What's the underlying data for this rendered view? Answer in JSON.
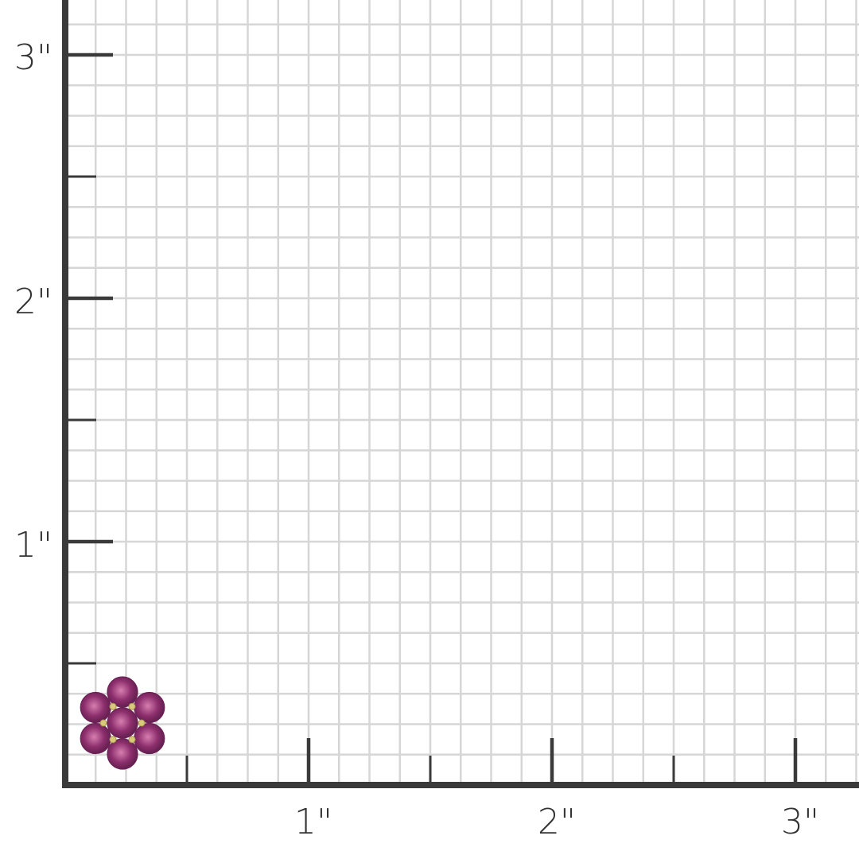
{
  "ruler": {
    "unit_mark": "\"",
    "y_labels": [
      "1\"",
      "2\"",
      "3\""
    ],
    "x_labels": [
      "1\"",
      "2\"",
      "3\""
    ],
    "subdivisions_per_inch": 8,
    "axis_color": "#3a3a3a",
    "grid_color": "#d6d6d6"
  },
  "product": {
    "type": "flower cluster earring",
    "stone_count": 7,
    "stone_color": "#8e2f6e",
    "metal_color": "#d9c97a",
    "width_in": 0.4,
    "height_in": 0.45
  }
}
